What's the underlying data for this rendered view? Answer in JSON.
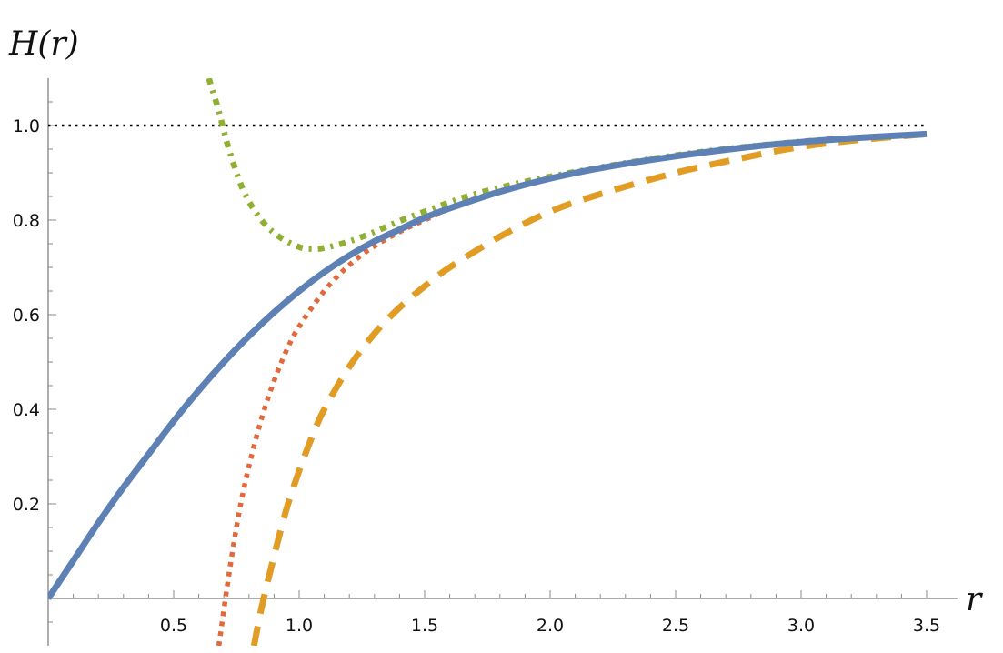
{
  "chart_data": {
    "type": "line",
    "title": "",
    "xlabel": "r",
    "ylabel": "H(r)",
    "xlim": [
      0,
      3.55
    ],
    "ylim": [
      -0.1,
      1.1
    ],
    "grid": false,
    "legend": "none",
    "x_ticks": [
      "0.5",
      "1.0",
      "1.5",
      "2.0",
      "2.5",
      "3.0",
      "3.5"
    ],
    "y_ticks": [
      "0.2",
      "0.4",
      "0.6",
      "0.8",
      "1.0"
    ],
    "series": [
      {
        "style": "solid",
        "color": "#5e81b5",
        "x": [
          0,
          0.1,
          0.2,
          0.3,
          0.4,
          0.5,
          0.6,
          0.7,
          0.8,
          0.9,
          1.0,
          1.1,
          1.2,
          1.3,
          1.4,
          1.5,
          1.6,
          1.8,
          2.0,
          2.2,
          2.5,
          2.8,
          3.0,
          3.2,
          3.5
        ],
        "y": [
          0,
          0.08,
          0.16,
          0.235,
          0.305,
          0.375,
          0.44,
          0.5,
          0.555,
          0.605,
          0.65,
          0.69,
          0.725,
          0.755,
          0.78,
          0.805,
          0.825,
          0.86,
          0.888,
          0.91,
          0.935,
          0.955,
          0.965,
          0.973,
          0.982
        ]
      },
      {
        "style": "dotted",
        "color": "#e1693c",
        "x": [
          0.68,
          0.72,
          0.76,
          0.8,
          0.85,
          0.9,
          0.95,
          1.0,
          1.1,
          1.2,
          1.3,
          1.4,
          1.5,
          1.7,
          2.0,
          2.5,
          3.0,
          3.5
        ],
        "y": [
          -0.1,
          0.05,
          0.18,
          0.28,
          0.38,
          0.46,
          0.525,
          0.575,
          0.65,
          0.705,
          0.745,
          0.775,
          0.8,
          0.845,
          0.888,
          0.935,
          0.965,
          0.982
        ]
      },
      {
        "style": "dashed",
        "color": "#e19c24",
        "x": [
          0.82,
          0.85,
          0.9,
          0.95,
          1.0,
          1.05,
          1.1,
          1.2,
          1.3,
          1.4,
          1.5,
          1.6,
          1.8,
          2.0,
          2.2,
          2.5,
          2.8,
          3.0,
          3.2,
          3.5
        ],
        "y": [
          -0.1,
          -0.02,
          0.09,
          0.19,
          0.27,
          0.34,
          0.4,
          0.49,
          0.56,
          0.615,
          0.66,
          0.7,
          0.765,
          0.818,
          0.855,
          0.9,
          0.935,
          0.955,
          0.968,
          0.982
        ]
      },
      {
        "style": "dot-dash",
        "color": "#8fb032",
        "x": [
          0.64,
          0.68,
          0.72,
          0.78,
          0.85,
          0.92,
          1.0,
          1.05,
          1.1,
          1.2,
          1.3,
          1.4,
          1.5,
          1.7,
          2.0,
          2.5,
          3.0,
          3.5
        ],
        "y": [
          1.1,
          1.03,
          0.95,
          0.86,
          0.8,
          0.765,
          0.743,
          0.739,
          0.741,
          0.755,
          0.775,
          0.798,
          0.818,
          0.855,
          0.892,
          0.937,
          0.966,
          0.982
        ]
      },
      {
        "style": "dotted-black",
        "color": "#000000",
        "x": [
          0,
          3.5
        ],
        "y": [
          1.0,
          1.0
        ]
      }
    ]
  }
}
